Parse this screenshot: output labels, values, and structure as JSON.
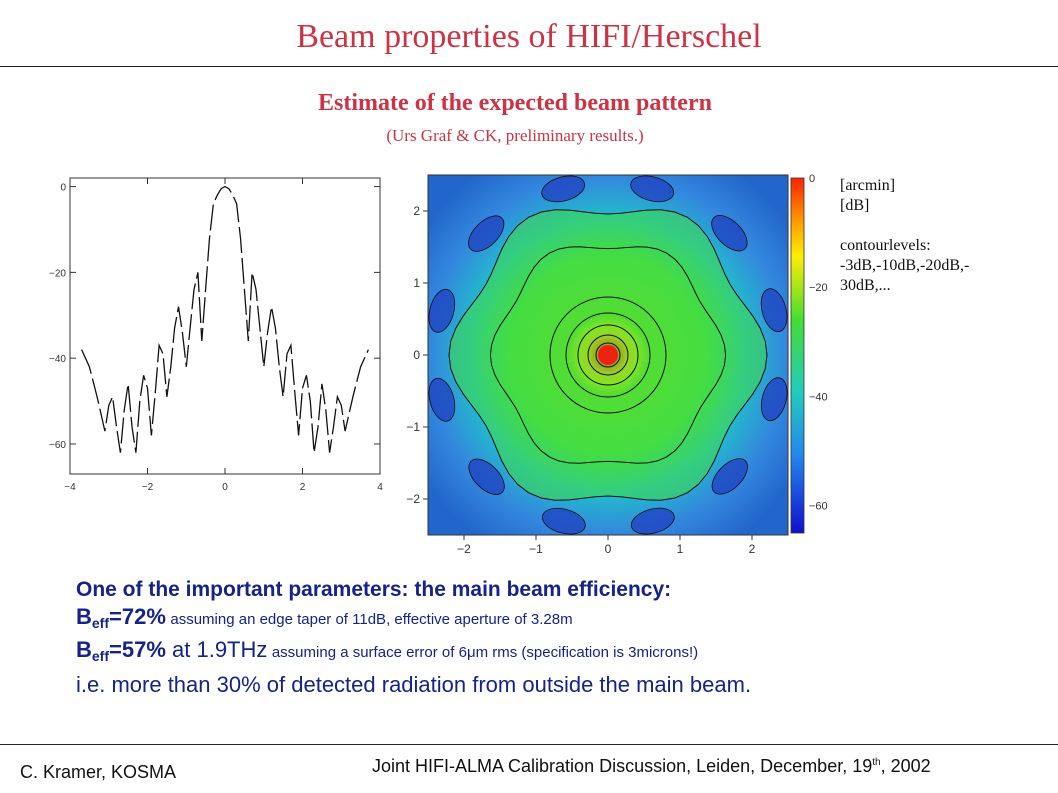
{
  "header": {
    "title": "Beam properties of HIFI/Herschel"
  },
  "section": {
    "heading": "Estimate of the expected beam pattern",
    "credit": "(Urs Graf & CK, preliminary results.)"
  },
  "legend_notes": {
    "unit_x": "[arcmin]",
    "unit_z": "[dB]",
    "contour_label": "contourlevels:",
    "contour_values_1": "-3dB,-10dB,-20dB,-",
    "contour_values_2": "30dB,..."
  },
  "body": {
    "line1": "One of the important parameters: the main beam efficiency:",
    "b_symbol": "B",
    "eff_sub": "eff",
    "line2_value": "=72%",
    "line2_note": "assuming an edge taper of 11dB, effective aperture of 3.28m",
    "line3_value": "=57%",
    "line3_freq": " at 1.9THz",
    "line3_note": "assuming a surface error of 6",
    "line3_mu": "μ",
    "line3_note_end": "m rms (specification is 3microns!)",
    "line4": "i.e. more than 30% of detected radiation from outside the main beam."
  },
  "footer": {
    "author": "C. Kramer, KOSMA",
    "event_main": "Joint HIFI-ALMA Calibration Discussion, Leiden, December, 19",
    "event_sup": "th",
    "event_end": ", 2002"
  },
  "chart_data": [
    {
      "type": "line",
      "x_ticks": [
        "−4",
        "−2",
        "0",
        "2",
        "4"
      ],
      "y_ticks": [
        "0",
        "−20",
        "−40",
        "−60"
      ],
      "xlim": [
        -4,
        4
      ],
      "ylim": [
        -67,
        2
      ],
      "series": [
        {
          "x": [
            -3.7,
            -3.5,
            -3.3,
            -3.1,
            -3.0,
            -2.9,
            -2.8,
            -2.7,
            -2.6,
            -2.5,
            -2.4,
            -2.3,
            -2.2,
            -2.1,
            -2.0,
            -1.9,
            -1.8,
            -1.7,
            -1.6,
            -1.5,
            -1.4,
            -1.3,
            -1.2,
            -1.1,
            -1.0,
            -0.9,
            -0.8,
            -0.7,
            -0.6,
            -0.5,
            -0.4,
            -0.3,
            -0.2,
            -0.1,
            0.0,
            0.1,
            0.2,
            0.3,
            0.4,
            0.5,
            0.6,
            0.7,
            0.8,
            0.9,
            1.0,
            1.1,
            1.2,
            1.3,
            1.4,
            1.5,
            1.6,
            1.7,
            1.8,
            1.9,
            2.0,
            2.1,
            2.2,
            2.3,
            2.4,
            2.5,
            2.6,
            2.7,
            2.8,
            2.9,
            3.0,
            3.1,
            3.3,
            3.5,
            3.7
          ],
          "y": [
            -38,
            -42,
            -49,
            -57,
            -51,
            -49,
            -56,
            -62,
            -52,
            -46,
            -56,
            -62,
            -50,
            -44,
            -47,
            -58,
            -48,
            -37,
            -39,
            -49,
            -42,
            -33,
            -28,
            -34,
            -42,
            -33,
            -24,
            -20,
            -36,
            -24,
            -12,
            -4,
            -2,
            -0.5,
            0,
            -0.5,
            -2,
            -4,
            -12,
            -24,
            -36,
            -20,
            -24,
            -33,
            -42,
            -34,
            -28,
            -33,
            -42,
            -49,
            -39,
            -37,
            -48,
            -58,
            -47,
            -44,
            -50,
            -62,
            -56,
            -46,
            -52,
            -62,
            -56,
            -49,
            -51,
            -57,
            -49,
            -42,
            -38
          ]
        }
      ]
    },
    {
      "type": "heatmap",
      "x_ticks": [
        "−2",
        "−1",
        "0",
        "1",
        "2"
      ],
      "y_ticks": [
        "2",
        "1",
        "0",
        "−1",
        "−2"
      ],
      "xlim": [
        -2.5,
        2.5
      ],
      "ylim": [
        -2.5,
        2.5
      ],
      "colorbar_ticks": [
        "0",
        "−20",
        "−40",
        "−60"
      ],
      "zlim": [
        -65,
        0
      ]
    }
  ]
}
